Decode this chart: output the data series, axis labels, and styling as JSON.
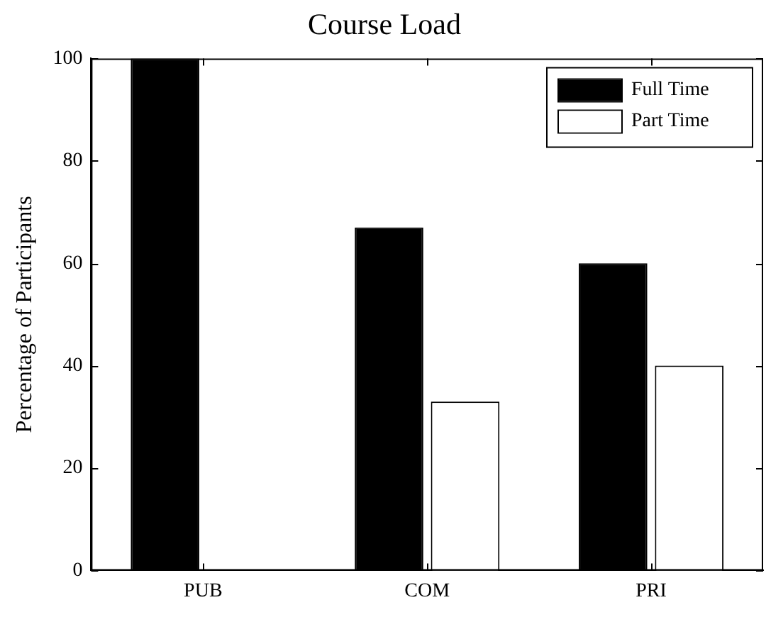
{
  "chart_data": {
    "type": "bar",
    "title": "Course Load",
    "ylabel": "Percentage of Participants",
    "categories": [
      "PUB",
      "COM",
      "PRI"
    ],
    "series": [
      {
        "name": "Full Time",
        "color": "#000000",
        "values": [
          100,
          67,
          60
        ]
      },
      {
        "name": "Part Time",
        "color": "#ffffff",
        "values": [
          0,
          33,
          40
        ]
      }
    ],
    "ylim": [
      0,
      100
    ],
    "yticks": [
      0,
      20,
      40,
      60,
      80,
      100
    ],
    "grid": false,
    "legend": "top right"
  }
}
